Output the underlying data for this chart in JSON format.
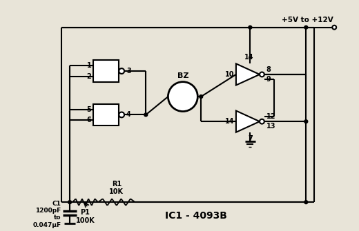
{
  "bg_color": "#e8e4d8",
  "line_color": "#000000",
  "title": "IC1 - 4093B",
  "supply_label": "+5V to +12V",
  "bz_label": "BZ",
  "r1_label": "R1\n10K",
  "p1_label": "P1\n100K",
  "c1_label": "C1\n1200pF\nto\n0.047μF"
}
